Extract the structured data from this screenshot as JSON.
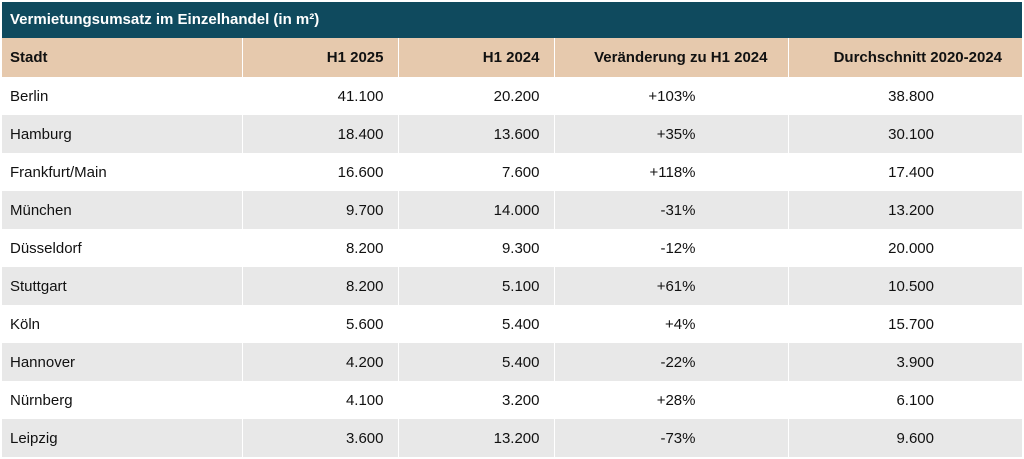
{
  "chart_data": {
    "type": "table",
    "title": "Vermietungsumsatz im Einzelhandel (in m²)",
    "columns": [
      "Stadt",
      "H1 2025",
      "H1 2024",
      "Veränderung zu H1 2024",
      "Durchschnitt 2020-2024"
    ],
    "rows": [
      [
        "Berlin",
        "41.100",
        "20.200",
        "+103%",
        "38.800"
      ],
      [
        "Hamburg",
        "18.400",
        "13.600",
        "+35%",
        "30.100"
      ],
      [
        "Frankfurt/Main",
        "16.600",
        "7.600",
        "+118%",
        "17.400"
      ],
      [
        "München",
        "9.700",
        "14.000",
        "-31%",
        "13.200"
      ],
      [
        "Düsseldorf",
        "8.200",
        "9.300",
        "-12%",
        "20.000"
      ],
      [
        "Stuttgart",
        "8.200",
        "5.100",
        "+61%",
        "10.500"
      ],
      [
        "Köln",
        "5.600",
        "5.400",
        "+4%",
        "15.700"
      ],
      [
        "Hannover",
        "4.200",
        "5.400",
        "-22%",
        "3.900"
      ],
      [
        "Nürnberg",
        "4.100",
        "3.200",
        "+28%",
        "6.100"
      ],
      [
        "Leipzig",
        "3.600",
        "13.200",
        "-73%",
        "9.600"
      ]
    ]
  },
  "colors": {
    "title_background": "#0f4a5e",
    "header_background": "#e6c9ad",
    "row_stripe": "#e8e8e8"
  }
}
